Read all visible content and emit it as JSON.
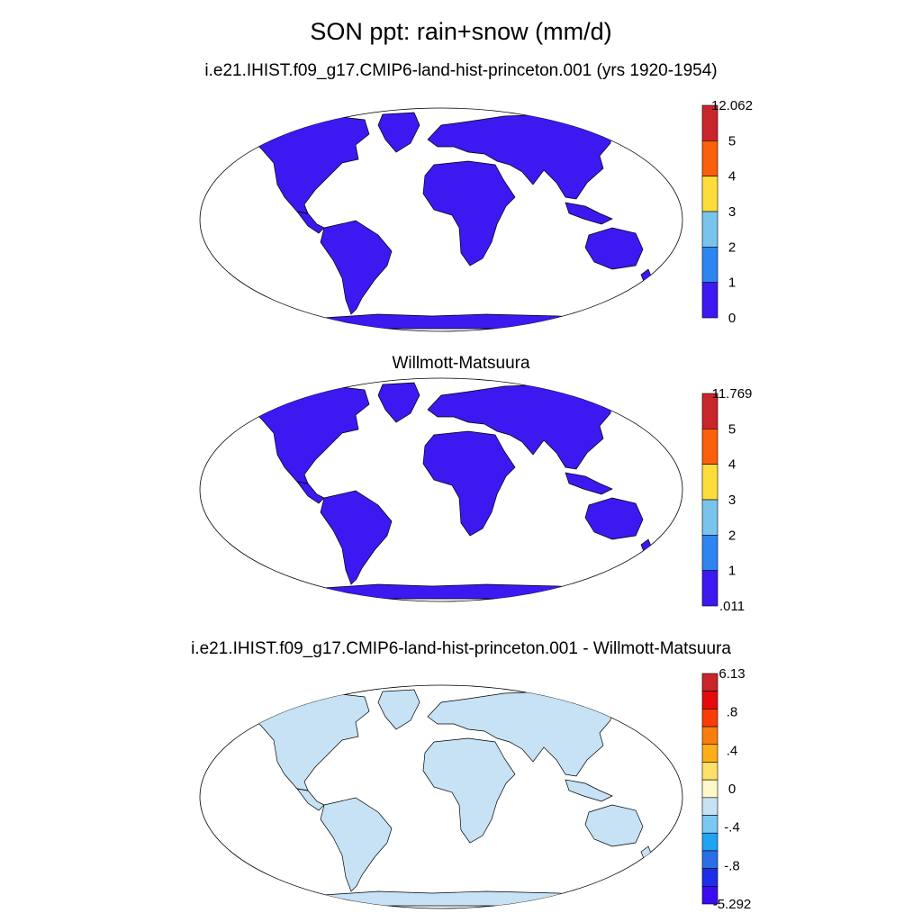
{
  "main_title": "SON ppt: rain+snow (mm/d)",
  "panels": [
    {
      "title": "i.e21.IHIST.f09_g17.CMIP6-land-hist-princeton.001 (yrs 1920-1954)",
      "colorbar": {
        "labels": [
          "12.062",
          "5",
          "4",
          "3",
          "2",
          "1",
          "0"
        ],
        "colors": [
          "#c9262c",
          "#fa5f0a",
          "#fedd3a",
          "#78c4ec",
          "#2e85f0",
          "#3d18f0"
        ]
      }
    },
    {
      "title": "Willmott-Matsuura",
      "colorbar": {
        "labels": [
          "11.769",
          "5",
          "4",
          "3",
          "2",
          "1",
          ".011"
        ],
        "colors": [
          "#c9262c",
          "#fa5f0a",
          "#fedd3a",
          "#78c4ec",
          "#2e85f0",
          "#3d18f0"
        ]
      }
    },
    {
      "title": "i.e21.IHIST.f09_g17.CMIP6-land-hist-princeton.001 - Willmott-Matsuura",
      "colorbar": {
        "labels": [
          "6.13",
          ".8",
          ".4",
          "0",
          "-.4",
          "-.8",
          "-5.292"
        ],
        "colors": [
          "#c9262c",
          "#e60a0a",
          "#fa3c0a",
          "#fb7d10",
          "#ffae1a",
          "#fee06a",
          "#fff8c8",
          "#c6e2f4",
          "#7cc8f4",
          "#1fa3f2",
          "#2a6fe6",
          "#1c2ee8",
          "#3a0af0"
        ]
      }
    }
  ]
}
